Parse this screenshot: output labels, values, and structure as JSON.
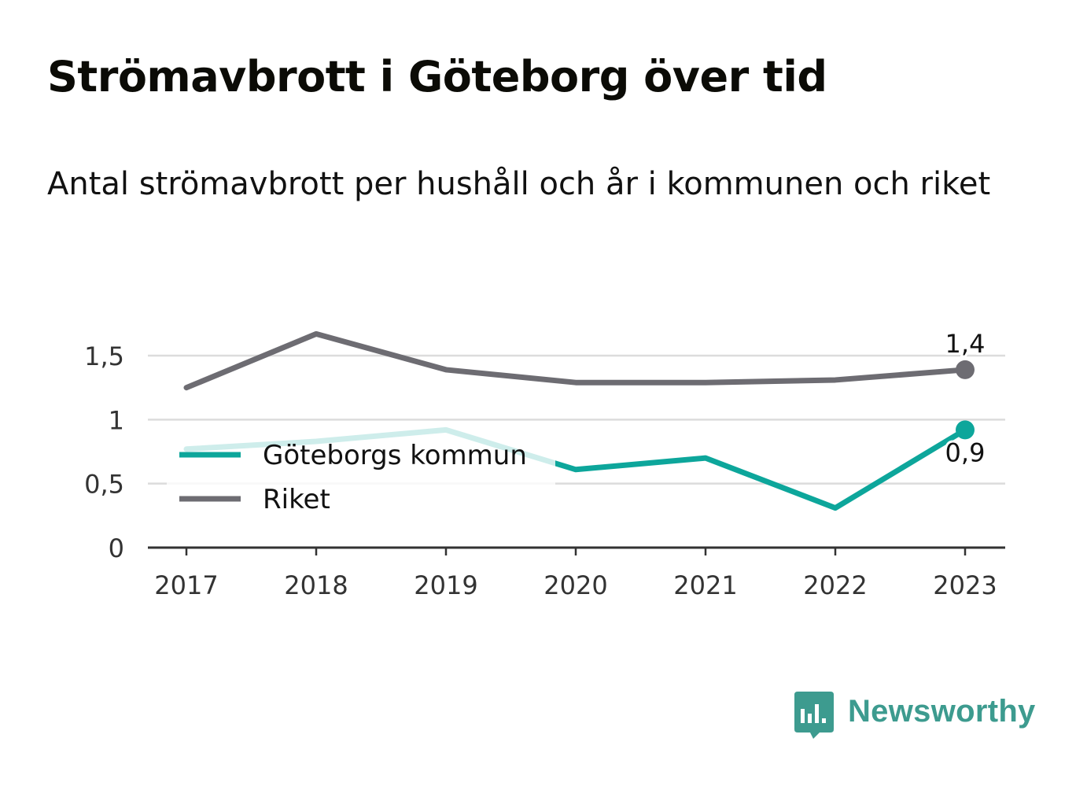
{
  "title": "Strömavbrott i Göteborg över tid",
  "subtitle": "Antal strömavbrott per hushåll och år i kommunen och riket",
  "brand": {
    "name": "Newsworthy",
    "icon": "newsworthy-logo-icon",
    "color": "#3d9b8f"
  },
  "chart_data": {
    "type": "line",
    "x": [
      2017,
      2018,
      2019,
      2020,
      2021,
      2022,
      2023
    ],
    "x_tick_labels": [
      "2017",
      "2018",
      "2019",
      "2020",
      "2021",
      "2022",
      "2023"
    ],
    "y_ticks": [
      0,
      0.5,
      1,
      1.5
    ],
    "y_tick_labels": [
      "0",
      "0,5",
      "1",
      "1,5"
    ],
    "ylim": [
      0,
      1.82
    ],
    "grid": true,
    "legend_position": "left",
    "series": [
      {
        "name": "Göteborgs kommun",
        "color": "#0da69b",
        "values": [
          0.77,
          0.83,
          0.92,
          0.61,
          0.7,
          0.31,
          0.92
        ],
        "end_label": "0,9"
      },
      {
        "name": "Riket",
        "color": "#6d6c72",
        "values": [
          1.25,
          1.67,
          1.39,
          1.29,
          1.29,
          1.31,
          1.39
        ],
        "end_label": "1,4"
      }
    ]
  }
}
